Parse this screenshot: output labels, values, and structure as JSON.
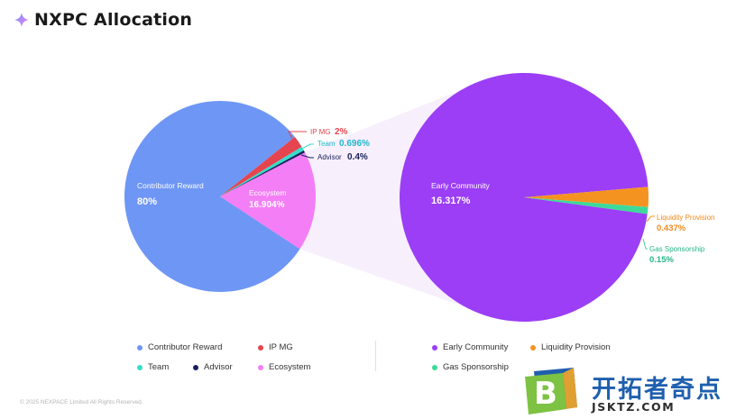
{
  "header": {
    "title": "NXPC Allocation",
    "icon": "sparkle-icon"
  },
  "chart_data": [
    {
      "type": "pie",
      "slices": [
        {
          "name": "Contributor Reward",
          "value": 80,
          "label": "80%",
          "color": "#6e96f5"
        },
        {
          "name": "IP MG",
          "value": 2,
          "label": "2%",
          "color": "#e5454f"
        },
        {
          "name": "Team",
          "value": 0.696,
          "label": "0.696%",
          "color": "#36dccb"
        },
        {
          "name": "Advisor",
          "value": 0.4,
          "label": "0.4%",
          "color": "#17205a"
        },
        {
          "name": "Ecosystem",
          "value": 16.904,
          "label": "16.904%",
          "color": "#f47ef5"
        }
      ],
      "colors": {
        "IP MG_label": "#e5454f",
        "Team_label": "#1fb6c9",
        "Advisor_label": "#17205a"
      }
    },
    {
      "type": "pie",
      "parent": "Ecosystem",
      "slices": [
        {
          "name": "Early Community",
          "value": 16.317,
          "label": "16.317%",
          "color": "#9b3ef6"
        },
        {
          "name": "Liquidity Provision",
          "value": 0.437,
          "label": "0.437%",
          "color": "#f59320"
        },
        {
          "name": "Gas Sponsorship",
          "value": 0.15,
          "label": "0.15%",
          "color": "#3dd99a"
        }
      ],
      "colors": {
        "Liquidity Provision_label": "#f28a1c",
        "Gas Sponsorship_label": "#26b788"
      }
    }
  ],
  "legend": {
    "left": [
      {
        "name": "Contributor Reward",
        "color": "#6e96f5"
      },
      {
        "name": "IP MG",
        "color": "#e5454f"
      },
      {
        "name": "Team",
        "color": "#36dccb"
      },
      {
        "name": "Advisor",
        "color": "#17205a"
      },
      {
        "name": "Ecosystem",
        "color": "#f47ef5"
      }
    ],
    "right": [
      {
        "name": "Early Community",
        "color": "#9b3ef6"
      },
      {
        "name": "Liquidity Provision",
        "color": "#f59320"
      },
      {
        "name": "Gas Sponsorship",
        "color": "#3dd99a"
      }
    ]
  },
  "footer": {
    "copyright": "© 2025 NEXPACE Limited All Rights Reserved."
  },
  "watermark": {
    "chinese": "开拓者奇点",
    "domain": "JSKTZ.COM",
    "logo_letter": "B",
    "colors": {
      "blue": "#1f5fae",
      "green": "#7dc242",
      "orange": "#f5a623"
    }
  }
}
